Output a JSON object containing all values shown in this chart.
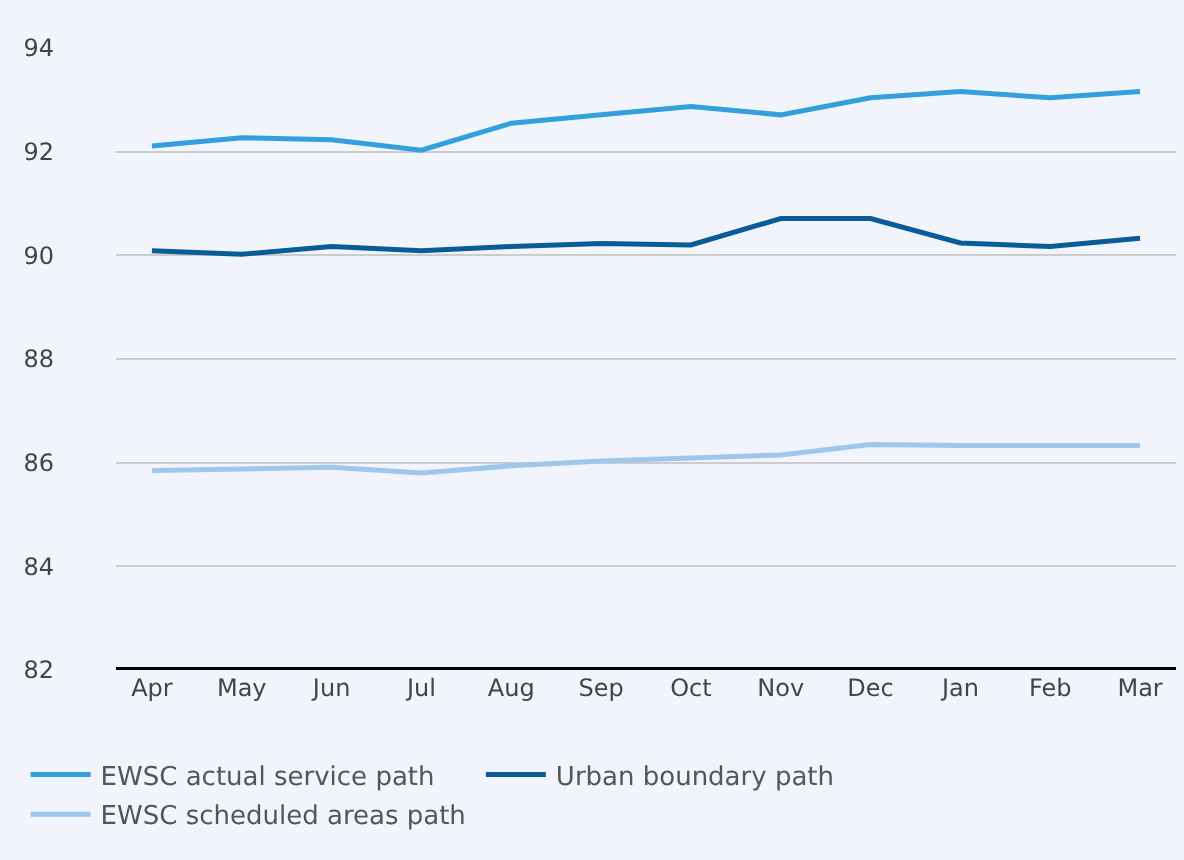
{
  "chart_data": {
    "type": "line",
    "categories": [
      "Apr",
      "May",
      "Jun",
      "Jul",
      "Aug",
      "Sep",
      "Oct",
      "Nov",
      "Dec",
      "Jan",
      "Feb",
      "Mar"
    ],
    "series": [
      {
        "name": "EWSC actual service path",
        "color": "#33a0dc",
        "values": [
          92.11,
          92.27,
          92.23,
          92.03,
          92.55,
          92.71,
          92.87,
          92.71,
          93.04,
          93.16,
          93.04,
          93.16
        ]
      },
      {
        "name": "Urban boundary path",
        "color": "#0a5c99",
        "values": [
          90.09,
          90.02,
          90.17,
          90.09,
          90.17,
          90.23,
          90.2,
          90.71,
          90.71,
          90.24,
          90.17,
          90.33
        ]
      },
      {
        "name": "EWSC scheduled areas path",
        "color": "#9dc8ec",
        "values": [
          85.85,
          85.88,
          85.91,
          85.8,
          85.94,
          86.03,
          86.09,
          86.15,
          86.35,
          86.33,
          86.33,
          86.33
        ]
      }
    ],
    "ylim": [
      82,
      94
    ],
    "yticks": [
      82,
      84,
      86,
      88,
      90,
      92,
      94
    ],
    "grid": "y",
    "legend": "bottom",
    "marker": "none",
    "line_style": "solid"
  }
}
